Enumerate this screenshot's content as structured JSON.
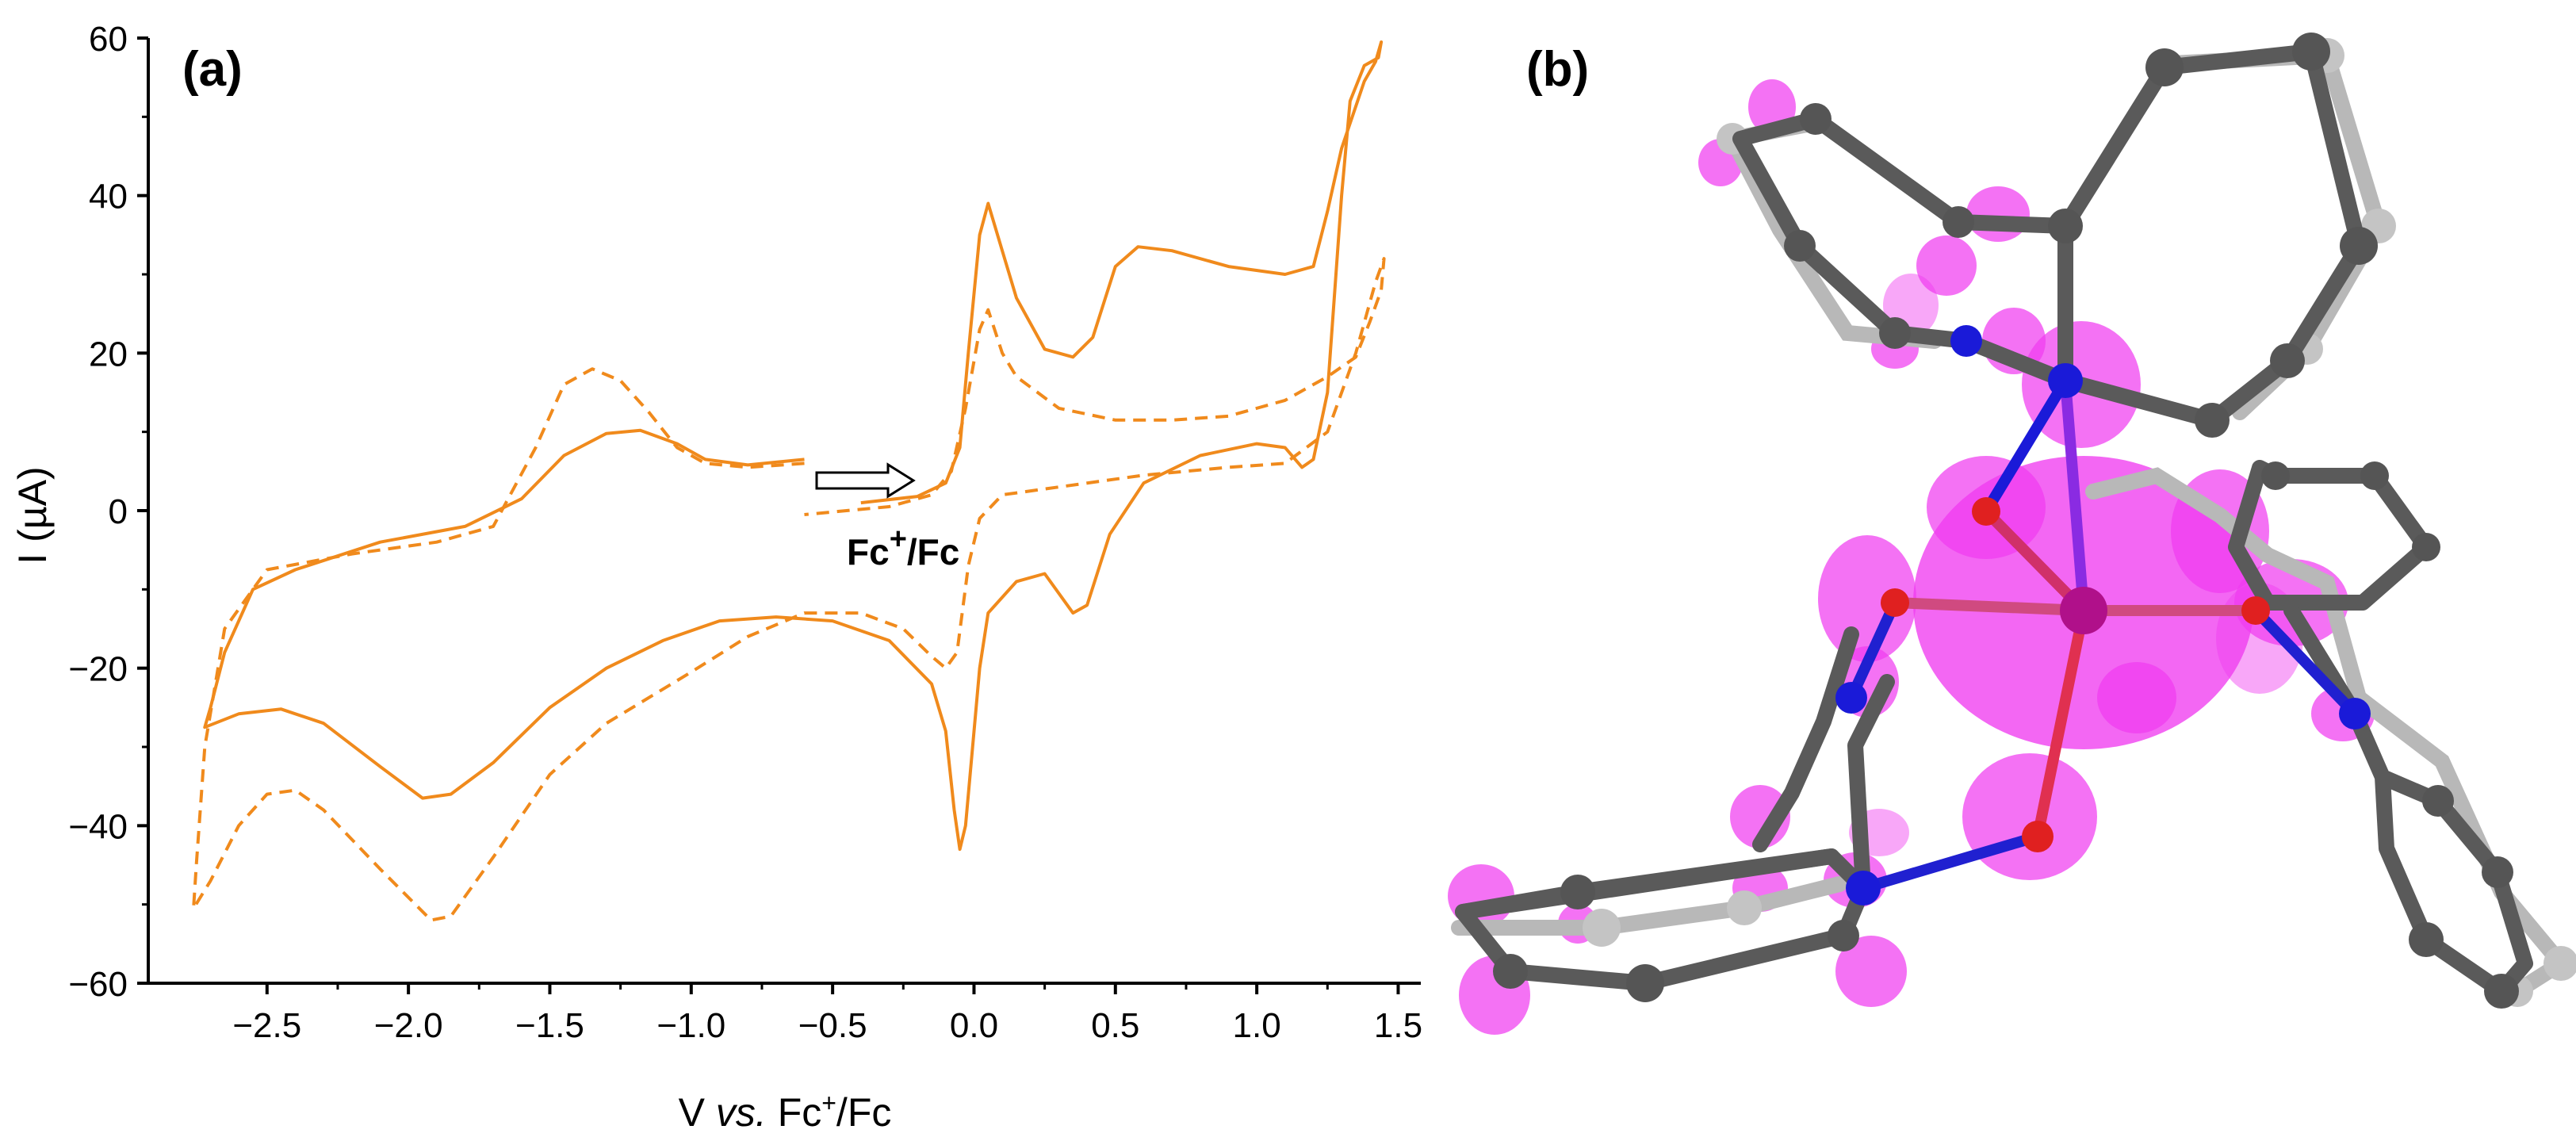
{
  "panel_a": {
    "label": "a",
    "annotation_super": "+",
    "annotation_fc": "Fc",
    "annotation_rest": "/Fc"
  },
  "panel_b": {
    "label": "b"
  },
  "chart_data": {
    "type": "line",
    "title": "",
    "xlabel": "V vs. Fc+/Fc",
    "ylabel": "I (µA)",
    "xlim": [
      -2.92,
      1.58
    ],
    "ylim": [
      -60,
      60
    ],
    "grid": false,
    "legend": "none",
    "x_ticks": [
      {
        "v": -2.5,
        "label": "−2.5"
      },
      {
        "v": -2.0,
        "label": "−2.0"
      },
      {
        "v": -1.5,
        "label": "−1.5"
      },
      {
        "v": -1.0,
        "label": "−1.0"
      },
      {
        "v": -0.5,
        "label": "−0.5"
      },
      {
        "v": 0.0,
        "label": "0.0"
      },
      {
        "v": 0.5,
        "label": "0.5"
      },
      {
        "v": 1.0,
        "label": "1.0"
      },
      {
        "v": 1.5,
        "label": "1.5"
      }
    ],
    "y_ticks": [
      {
        "v": 60,
        "label": "60"
      },
      {
        "v": 40,
        "label": "40"
      },
      {
        "v": 20,
        "label": "20"
      },
      {
        "v": 0,
        "label": "0"
      },
      {
        "v": -20,
        "label": "−20"
      },
      {
        "v": -40,
        "label": "−40"
      },
      {
        "v": -60,
        "label": "−60"
      }
    ],
    "series": [
      {
        "style": "solid",
        "color": "#f08a1c",
        "points": [
          [
            -0.6,
            6.5
          ],
          [
            -0.8,
            5.8
          ],
          [
            -0.95,
            6.5
          ],
          [
            -1.05,
            8.5
          ],
          [
            -1.18,
            10.2
          ],
          [
            -1.3,
            9.8
          ],
          [
            -1.45,
            7.0
          ],
          [
            -1.6,
            1.5
          ],
          [
            -1.8,
            -2.0
          ],
          [
            -2.1,
            -4.0
          ],
          [
            -2.4,
            -7.5
          ],
          [
            -2.55,
            -10.0
          ],
          [
            -2.65,
            -18.0
          ],
          [
            -2.7,
            -25.0
          ],
          [
            -2.72,
            -27.5
          ],
          [
            -2.6,
            -25.8
          ],
          [
            -2.45,
            -25.2
          ],
          [
            -2.3,
            -27.0
          ],
          [
            -2.1,
            -32.5
          ],
          [
            -1.95,
            -36.5
          ],
          [
            -1.85,
            -36.0
          ],
          [
            -1.7,
            -32.0
          ],
          [
            -1.5,
            -25.0
          ],
          [
            -1.3,
            -20.0
          ],
          [
            -1.1,
            -16.5
          ],
          [
            -0.9,
            -14.0
          ],
          [
            -0.7,
            -13.5
          ],
          [
            -0.5,
            -14.0
          ],
          [
            -0.3,
            -16.5
          ],
          [
            -0.15,
            -22.0
          ],
          [
            -0.1,
            -28.0
          ],
          [
            -0.07,
            -38.0
          ],
          [
            -0.05,
            -43.0
          ],
          [
            -0.03,
            -40.0
          ],
          [
            0.0,
            -28.0
          ],
          [
            0.02,
            -20.0
          ],
          [
            0.05,
            -13.0
          ],
          [
            0.15,
            -9.0
          ],
          [
            0.25,
            -8.0
          ],
          [
            0.35,
            -13.0
          ],
          [
            0.4,
            -12.0
          ],
          [
            0.48,
            -3.0
          ],
          [
            0.6,
            3.5
          ],
          [
            0.8,
            7.0
          ],
          [
            1.0,
            8.5
          ],
          [
            1.1,
            8.0
          ],
          [
            1.16,
            5.5
          ],
          [
            1.2,
            6.5
          ],
          [
            1.25,
            15.0
          ],
          [
            1.3,
            40.0
          ],
          [
            1.33,
            52.0
          ],
          [
            1.38,
            56.5
          ],
          [
            1.43,
            57.5
          ],
          [
            1.44,
            59.5
          ],
          [
            1.42,
            57.0
          ],
          [
            1.38,
            54.5
          ],
          [
            1.3,
            46.0
          ],
          [
            1.25,
            38.0
          ],
          [
            1.2,
            31.0
          ],
          [
            1.1,
            30.0
          ],
          [
            0.9,
            31.0
          ],
          [
            0.7,
            33.0
          ],
          [
            0.58,
            33.5
          ],
          [
            0.5,
            31.0
          ],
          [
            0.42,
            22.0
          ],
          [
            0.35,
            19.5
          ],
          [
            0.25,
            20.5
          ],
          [
            0.15,
            27.0
          ],
          [
            0.1,
            33.0
          ],
          [
            0.05,
            39.0
          ],
          [
            0.02,
            35.0
          ],
          [
            -0.02,
            20.0
          ],
          [
            -0.05,
            8.0
          ],
          [
            -0.1,
            3.5
          ],
          [
            -0.2,
            1.8
          ],
          [
            -0.4,
            1.0
          ]
        ]
      },
      {
        "style": "dashed",
        "color": "#f08a1c",
        "points": [
          [
            -0.6,
            6.0
          ],
          [
            -0.8,
            5.5
          ],
          [
            -0.95,
            6.0
          ],
          [
            -1.05,
            8.0
          ],
          [
            -1.15,
            12.5
          ],
          [
            -1.25,
            16.5
          ],
          [
            -1.35,
            18.0
          ],
          [
            -1.45,
            16.0
          ],
          [
            -1.55,
            8.0
          ],
          [
            -1.7,
            -2.0
          ],
          [
            -1.9,
            -4.0
          ],
          [
            -2.2,
            -5.5
          ],
          [
            -2.5,
            -7.5
          ],
          [
            -2.65,
            -15.0
          ],
          [
            -2.72,
            -30.0
          ],
          [
            -2.75,
            -45.0
          ],
          [
            -2.76,
            -50.5
          ],
          [
            -2.7,
            -47.0
          ],
          [
            -2.6,
            -40.0
          ],
          [
            -2.5,
            -36.0
          ],
          [
            -2.4,
            -35.5
          ],
          [
            -2.3,
            -38.0
          ],
          [
            -2.1,
            -45.5
          ],
          [
            -1.92,
            -52.0
          ],
          [
            -1.85,
            -51.5
          ],
          [
            -1.7,
            -44.0
          ],
          [
            -1.5,
            -33.5
          ],
          [
            -1.3,
            -27.0
          ],
          [
            -1.0,
            -20.5
          ],
          [
            -0.8,
            -16.0
          ],
          [
            -0.6,
            -13.0
          ],
          [
            -0.4,
            -13.0
          ],
          [
            -0.25,
            -15.0
          ],
          [
            -0.15,
            -18.5
          ],
          [
            -0.1,
            -20.0
          ],
          [
            -0.06,
            -18.0
          ],
          [
            -0.02,
            -7.0
          ],
          [
            0.02,
            -1.0
          ],
          [
            0.1,
            2.0
          ],
          [
            0.3,
            3.0
          ],
          [
            0.6,
            4.5
          ],
          [
            0.9,
            5.5
          ],
          [
            1.1,
            6.0
          ],
          [
            1.25,
            10.0
          ],
          [
            1.35,
            20.0
          ],
          [
            1.42,
            29.0
          ],
          [
            1.45,
            32.0
          ],
          [
            1.44,
            28.0
          ],
          [
            1.4,
            24.0
          ],
          [
            1.35,
            19.5
          ],
          [
            1.25,
            17.0
          ],
          [
            1.1,
            14.0
          ],
          [
            0.9,
            12.0
          ],
          [
            0.7,
            11.5
          ],
          [
            0.5,
            11.5
          ],
          [
            0.3,
            13.0
          ],
          [
            0.15,
            17.0
          ],
          [
            0.1,
            20.0
          ],
          [
            0.05,
            25.5
          ],
          [
            0.02,
            23.0
          ],
          [
            -0.03,
            13.0
          ],
          [
            -0.08,
            5.0
          ],
          [
            -0.15,
            2.0
          ],
          [
            -0.3,
            0.5
          ],
          [
            -0.6,
            -0.5
          ]
        ]
      }
    ],
    "annotations": [
      {
        "text": "Fc+/Fc",
        "x": -0.45,
        "y": -5
      },
      {
        "text": "arrow",
        "x": -0.44,
        "y": 4
      }
    ]
  }
}
